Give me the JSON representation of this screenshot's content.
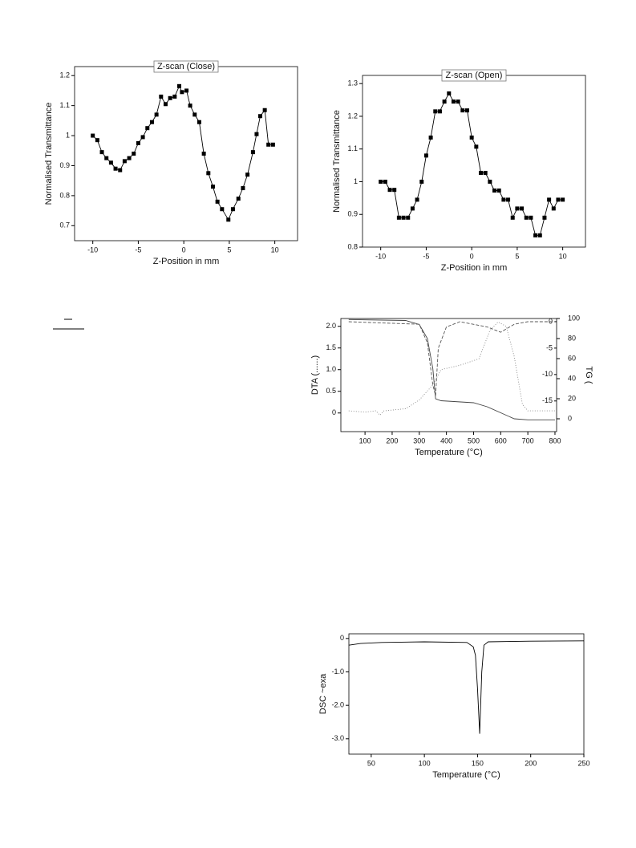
{
  "chart_data": [
    {
      "type": "line",
      "title": "Z-scan (Close)",
      "xlabel": "Z-Position in mm",
      "ylabel": "Normalised Transmittance",
      "xlim": [
        -12,
        12.5
      ],
      "xticks": [
        -10,
        -5,
        0,
        5,
        10
      ],
      "ylim": [
        0.65,
        1.23
      ],
      "yticks": [
        0.7,
        0.8,
        0.9,
        1.0,
        1.1,
        1.2
      ],
      "marker": "square",
      "series": [
        {
          "color": "#000000",
          "x": [
            -10,
            -9.5,
            -9,
            -8.5,
            -8,
            -7.5,
            -7,
            -6.5,
            -6,
            -5.5,
            -5,
            -4.5,
            -4,
            -3.5,
            -3,
            -2.5,
            -2,
            -1.5,
            -1,
            -0.5,
            -0.2,
            0.3,
            0.7,
            1.2,
            1.7,
            2.2,
            2.7,
            3.2,
            3.7,
            4.2,
            4.9,
            5.4,
            6,
            6.5,
            7,
            7.6,
            8,
            8.4,
            8.9,
            9.3,
            9.8
          ],
          "values": [
            1.0,
            0.985,
            0.945,
            0.925,
            0.91,
            0.89,
            0.885,
            0.915,
            0.925,
            0.94,
            0.975,
            0.995,
            1.025,
            1.045,
            1.07,
            1.13,
            1.105,
            1.125,
            1.13,
            1.165,
            1.145,
            1.15,
            1.1,
            1.07,
            1.045,
            0.94,
            0.875,
            0.83,
            0.78,
            0.755,
            0.72,
            0.755,
            0.79,
            0.825,
            0.87,
            0.945,
            1.005,
            1.065,
            1.085,
            0.97,
            0.97
          ]
        }
      ]
    },
    {
      "type": "line",
      "title": "Z-scan (Open)",
      "xlabel": "Z-Position in mm",
      "ylabel": "Normalised Transmittance",
      "xlim": [
        -12,
        12.5
      ],
      "xticks": [
        -10,
        -5,
        0,
        5,
        10
      ],
      "ylim": [
        0.8,
        1.325
      ],
      "yticks": [
        0.8,
        0.9,
        1.0,
        1.1,
        1.2,
        1.3
      ],
      "marker": "square",
      "series": [
        {
          "color": "#000000",
          "x": [
            -10,
            -9.5,
            -9,
            -8.5,
            -8,
            -7.5,
            -7,
            -6.5,
            -6,
            -5.5,
            -5,
            -4.5,
            -4,
            -3.5,
            -3,
            -2.5,
            -2,
            -1.5,
            -1,
            -0.5,
            0,
            0.5,
            1,
            1.5,
            2,
            2.5,
            3,
            3.5,
            4,
            4.5,
            5,
            5.5,
            6,
            6.5,
            7,
            7.5,
            8,
            8.5,
            9,
            9.5,
            10
          ],
          "values": [
            1.0,
            1.0,
            0.975,
            0.975,
            0.89,
            0.89,
            0.89,
            0.918,
            0.945,
            1.0,
            1.08,
            1.135,
            1.215,
            1.215,
            1.245,
            1.27,
            1.245,
            1.245,
            1.218,
            1.218,
            1.135,
            1.107,
            1.027,
            1.027,
            1.0,
            0.973,
            0.973,
            0.945,
            0.945,
            0.89,
            0.918,
            0.918,
            0.89,
            0.89,
            0.836,
            0.836,
            0.89,
            0.945,
            0.918,
            0.945,
            0.945
          ]
        }
      ]
    },
    {
      "type": "line",
      "xlabel": "Temperature (°C)",
      "ylabel": "DTA (......)",
      "y2label": "TG (",
      "xlim": [
        11,
        806
      ],
      "xticks": [
        100,
        200,
        300,
        400,
        500,
        600,
        700,
        800
      ],
      "ylim": [
        -0.43,
        2.18
      ],
      "yticks": [
        0,
        0.5,
        {
          "value": 1,
          "label": "1.0"
        },
        1.5,
        {
          "value": 2,
          "label": "2.0"
        }
      ],
      "y2lim": [
        -12.8,
        100
      ],
      "y2ticks": [
        0,
        20,
        40,
        60,
        80,
        100
      ],
      "y3lim": [
        -20.8,
        0.6
      ],
      "y3ticks": [
        0,
        -5,
        -10,
        -15
      ],
      "series": [
        {
          "color": "#888888",
          "dash": "1,2",
          "axis": "y",
          "x": [
            40,
            100,
            140,
            155,
            170,
            250,
            300,
            350,
            380,
            450,
            520,
            560,
            590,
            620,
            650,
            680,
            700,
            800
          ],
          "values": [
            0.05,
            0.02,
            0.05,
            -0.05,
            0.05,
            0.1,
            0.3,
            0.65,
            1.0,
            1.1,
            1.25,
            1.9,
            2.1,
            2.0,
            1.3,
            0.2,
            0.05,
            0.05
          ]
        },
        {
          "color": "#444444",
          "axis": "y2",
          "x": [
            40,
            250,
            300,
            330,
            350,
            360,
            380,
            500,
            550,
            600,
            650,
            700,
            800
          ],
          "values": [
            99,
            98,
            94,
            80,
            50,
            20,
            18,
            16,
            12,
            6,
            0,
            -1,
            -1
          ]
        },
        {
          "color": "#555555",
          "dash": "4,2",
          "axis": "y3",
          "x": [
            40,
            300,
            330,
            350,
            360,
            370,
            400,
            450,
            550,
            600,
            650,
            700,
            800
          ],
          "values": [
            0,
            -0.5,
            -4,
            -12,
            -14,
            -5,
            -1,
            0,
            -1,
            -2,
            -0.5,
            0,
            0
          ]
        }
      ]
    },
    {
      "type": "line",
      "xlabel": "Temperature (°C)",
      "ylabel": "DSC ~exa",
      "xlim": [
        29,
        250
      ],
      "xticks": [
        50,
        100,
        150,
        200,
        250
      ],
      "ylim": [
        -3.46,
        0.14
      ],
      "yticks": [
        0,
        {
          "value": -1,
          "label": "-1.0"
        },
        {
          "value": -2,
          "label": "-2.0"
        },
        {
          "value": -3,
          "label": "-3.0"
        }
      ],
      "series": [
        {
          "color": "#000000",
          "x": [
            29,
            40,
            60,
            100,
            140,
            146,
            148,
            150,
            152,
            154,
            156,
            160,
            200,
            250
          ],
          "values": [
            -0.2,
            -0.15,
            -0.12,
            -0.1,
            -0.12,
            -0.25,
            -0.5,
            -1.5,
            -2.85,
            -1.0,
            -0.2,
            -0.1,
            -0.08,
            -0.07
          ]
        }
      ]
    }
  ]
}
